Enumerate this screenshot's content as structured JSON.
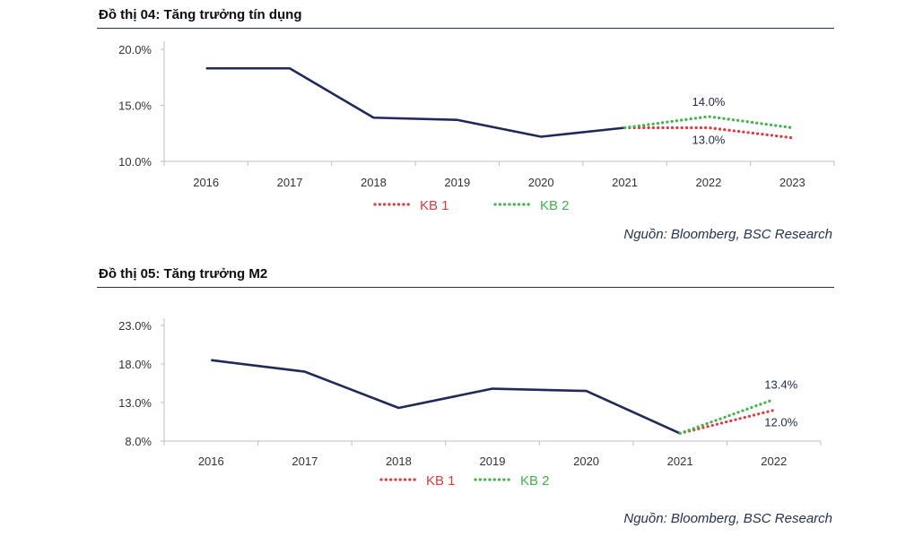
{
  "charts": [
    {
      "title": "Đồ thị 04: Tăng trưởng tín dụng",
      "source": "Nguồn: Bloomberg, BSC Research"
    },
    {
      "title": "Đồ thị 05: Tăng trưởng M2",
      "source": "Nguồn: Bloomberg, BSC Research"
    }
  ],
  "chart_data": [
    {
      "type": "line",
      "title": "Đồ thị 04: Tăng trưởng tín dụng",
      "x": [
        "2016",
        "2017",
        "2018",
        "2019",
        "2020",
        "2021",
        "2022",
        "2023"
      ],
      "ylim": [
        10,
        20
      ],
      "yticks": [
        "10.0%",
        "15.0%",
        "20.0%"
      ],
      "yticks_values": [
        10,
        15,
        20
      ],
      "series": [
        {
          "name": "",
          "values": [
            18.3,
            18.3,
            13.9,
            13.7,
            12.2,
            13.0,
            null,
            null
          ],
          "color": "#1f2a5c",
          "style": "solid"
        },
        {
          "name": "KB 1",
          "values": [
            null,
            null,
            null,
            null,
            null,
            13.0,
            13.0,
            12.1
          ],
          "color": "#e0393e",
          "style": "dotted"
        },
        {
          "name": "KB 2",
          "values": [
            null,
            null,
            null,
            null,
            null,
            13.0,
            14.0,
            13.0
          ],
          "color": "#3fb54a",
          "style": "dotted"
        }
      ],
      "annotations": [
        {
          "text": "14.0%",
          "category": "2022",
          "value": 14.0,
          "series": "KB 2",
          "placement": "above"
        },
        {
          "text": "13.0%",
          "category": "2022",
          "value": 13.0,
          "series": "KB 1",
          "placement": "below"
        }
      ],
      "legend": [
        "KB 1",
        "KB 2"
      ],
      "legend_position": "bottom",
      "grid": false
    },
    {
      "type": "line",
      "title": "Đồ thị 05: Tăng trưởng M2",
      "x": [
        "2016",
        "2017",
        "2018",
        "2019",
        "2020",
        "2021",
        "2022"
      ],
      "ylim": [
        8,
        23
      ],
      "yticks": [
        "8.0%",
        "13.0%",
        "18.0%",
        "23.0%"
      ],
      "yticks_values": [
        8,
        13,
        18,
        23
      ],
      "series": [
        {
          "name": "",
          "values": [
            18.5,
            17.0,
            12.3,
            14.8,
            14.5,
            9.0,
            null
          ],
          "color": "#1f2a5c",
          "style": "solid"
        },
        {
          "name": "KB 1",
          "values": [
            null,
            null,
            null,
            null,
            null,
            9.0,
            12.0
          ],
          "color": "#e0393e",
          "style": "dotted"
        },
        {
          "name": "KB 2",
          "values": [
            null,
            null,
            null,
            null,
            null,
            9.0,
            13.4
          ],
          "color": "#3fb54a",
          "style": "dotted"
        }
      ],
      "annotations": [
        {
          "text": "13.4%",
          "category": "2022",
          "value": 13.4,
          "series": "KB 2",
          "placement": "above"
        },
        {
          "text": "12.0%",
          "category": "2022",
          "value": 12.0,
          "series": "KB 1",
          "placement": "below"
        }
      ],
      "legend": [
        "KB 1",
        "KB 2"
      ],
      "legend_position": "bottom",
      "grid": false
    }
  ]
}
